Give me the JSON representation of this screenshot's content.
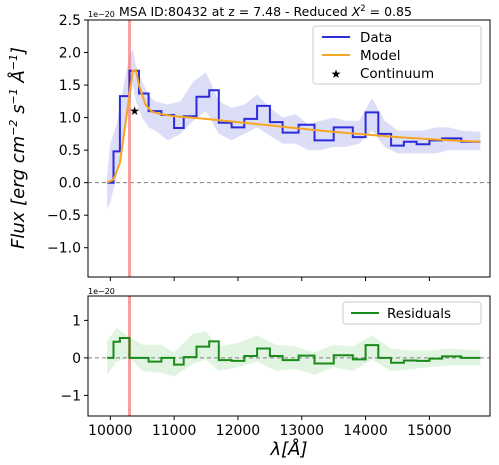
{
  "chart_data": [
    {
      "type": "line",
      "panel": "top",
      "title": "MSA ID:80432 at z = 7.48 - Reduced X² = 0.85",
      "title_prefix": "MSA ID:80432 at z = 7.48 - Reduced ",
      "title_chi": "X",
      "title_sup": "2",
      "title_suffix": " = 0.85",
      "scale_note": "1e−20",
      "ylabel_main": "Flux [erg cm",
      "ylabel_sup1": "−2",
      "ylabel_mid": " s",
      "ylabel_sup2": "−1",
      "ylabel_end": " Å",
      "ylabel_sup3": "−1",
      "ylabel_close": "]",
      "ylim": [
        -1.45,
        2.5
      ],
      "yticks": [
        2.5,
        2.0,
        1.5,
        1.0,
        0.5,
        0.0,
        -0.5,
        -1.0
      ],
      "ytick_labels": [
        "2.5",
        "2.0",
        "1.5",
        "1.0",
        "0.5",
        "0.0",
        "−0.5",
        "−1.0"
      ],
      "xlim": [
        9650,
        15950
      ],
      "legend_position": "top-right",
      "legend": [
        "Data",
        "Model",
        "Continuum"
      ],
      "vline_x": 10300,
      "hline_y": 0,
      "series": [
        {
          "name": "Data",
          "kind": "step",
          "color": "#2b2bdb",
          "edges": [
            9950,
            10050,
            10150,
            10300,
            10450,
            10600,
            10800,
            11000,
            11150,
            11350,
            11550,
            11700,
            11900,
            12100,
            12300,
            12500,
            12700,
            12950,
            13200,
            13500,
            13800,
            14000,
            14200,
            14400,
            14600,
            14800,
            15000,
            15200,
            15500,
            15800
          ],
          "values": [
            0.0,
            0.48,
            1.33,
            1.72,
            1.37,
            1.1,
            1.04,
            0.84,
            1.02,
            1.32,
            1.42,
            0.92,
            0.85,
            0.98,
            1.18,
            0.93,
            0.77,
            0.89,
            0.65,
            0.85,
            0.7,
            1.08,
            0.75,
            0.57,
            0.63,
            0.59,
            0.65,
            0.68,
            0.63
          ]
        },
        {
          "name": "Model",
          "kind": "line",
          "color": "#f5a623",
          "x": [
            9950,
            10050,
            10150,
            10250,
            10350,
            10400,
            10450,
            10550,
            10650,
            10800,
            11000,
            11500,
            12000,
            12500,
            13000,
            13500,
            14000,
            14500,
            15000,
            15500,
            15800
          ],
          "y": [
            0.0,
            0.05,
            0.3,
            1.0,
            1.72,
            1.73,
            1.5,
            1.2,
            1.09,
            1.05,
            1.02,
            0.98,
            0.93,
            0.88,
            0.83,
            0.78,
            0.74,
            0.7,
            0.67,
            0.64,
            0.63
          ]
        },
        {
          "name": "Continuum",
          "kind": "marker",
          "color": "#000000",
          "x": [
            10380
          ],
          "y": [
            1.1
          ]
        }
      ],
      "error_band": {
        "color": "#9a9ee8",
        "x": [
          9950,
          10000,
          10100,
          10200,
          10300,
          10350,
          10400,
          10500,
          10600,
          10700,
          10900,
          11100,
          11300,
          11500,
          11700,
          11900,
          12100,
          12300,
          12500,
          12700,
          12900,
          13100,
          13300,
          13500,
          13700,
          13900,
          14100,
          14300,
          14500,
          14700,
          14900,
          15100,
          15300,
          15500,
          15800
        ],
        "lower": [
          -0.4,
          -0.3,
          0.1,
          0.6,
          1.2,
          1.5,
          1.25,
          1.0,
          0.85,
          0.8,
          0.65,
          0.75,
          0.95,
          1.1,
          0.75,
          0.65,
          0.75,
          0.85,
          0.72,
          0.6,
          0.6,
          0.5,
          0.5,
          0.55,
          0.55,
          0.6,
          0.8,
          0.55,
          0.45,
          0.45,
          0.45,
          0.45,
          0.5,
          0.5,
          0.5
        ],
        "upper": [
          0.1,
          0.6,
          0.9,
          1.45,
          1.95,
          2.05,
          1.8,
          1.55,
          1.35,
          1.25,
          1.2,
          1.25,
          1.55,
          1.7,
          1.25,
          1.15,
          1.2,
          1.35,
          1.15,
          1.0,
          1.05,
          0.9,
          0.95,
          1.0,
          0.95,
          0.95,
          1.3,
          0.95,
          0.8,
          0.8,
          0.8,
          0.85,
          0.85,
          0.8,
          0.78
        ]
      }
    },
    {
      "type": "line",
      "panel": "bottom",
      "scale_note": "1e−20",
      "ylim": [
        -1.55,
        1.65
      ],
      "yticks": [
        1,
        0,
        -1
      ],
      "ytick_labels": [
        "1",
        "0",
        "−1"
      ],
      "xlim": [
        9650,
        15950
      ],
      "xticks": [
        10000,
        11000,
        12000,
        13000,
        14000,
        15000
      ],
      "xtick_labels": [
        "10000",
        "11000",
        "12000",
        "13000",
        "14000",
        "15000"
      ],
      "xlabel_main": "λ[Å]",
      "legend_position": "top-right",
      "legend": [
        "Residuals"
      ],
      "vline_x": 10300,
      "hline_y": 0,
      "series": [
        {
          "name": "Residuals",
          "kind": "step",
          "color": "#1a8a1a",
          "edges": [
            9950,
            10050,
            10150,
            10300,
            10450,
            10600,
            10800,
            11000,
            11150,
            11350,
            11550,
            11700,
            11900,
            12100,
            12300,
            12500,
            12700,
            12950,
            13200,
            13500,
            13800,
            14000,
            14200,
            14400,
            14600,
            14800,
            15000,
            15200,
            15500,
            15800
          ],
          "values": [
            0.0,
            0.43,
            0.53,
            0.0,
            0.0,
            -0.1,
            0.0,
            -0.18,
            0.02,
            0.3,
            0.44,
            -0.06,
            -0.08,
            0.05,
            0.25,
            0.05,
            -0.06,
            0.06,
            -0.15,
            0.07,
            -0.04,
            0.34,
            0.0,
            -0.13,
            -0.07,
            -0.08,
            -0.02,
            0.04,
            0.0
          ]
        }
      ],
      "error_band": {
        "color": "#a8dca8",
        "x": [
          9950,
          10100,
          10300,
          10500,
          10800,
          11000,
          11300,
          11500,
          11700,
          12000,
          12300,
          12600,
          12900,
          13200,
          13500,
          13800,
          14100,
          14400,
          14700,
          15000,
          15300,
          15800
        ],
        "lower": [
          -0.45,
          -0.1,
          0.0,
          -0.35,
          -0.4,
          -0.5,
          -0.15,
          -0.05,
          -0.35,
          -0.25,
          -0.1,
          -0.35,
          -0.3,
          -0.45,
          -0.25,
          -0.35,
          -0.05,
          -0.35,
          -0.3,
          -0.25,
          -0.2,
          -0.2
        ],
        "upper": [
          0.45,
          0.8,
          0.55,
          0.35,
          0.35,
          0.15,
          0.65,
          0.7,
          0.3,
          0.4,
          0.6,
          0.35,
          0.3,
          0.15,
          0.35,
          0.3,
          0.6,
          0.25,
          0.2,
          0.2,
          0.25,
          0.2
        ]
      }
    }
  ]
}
